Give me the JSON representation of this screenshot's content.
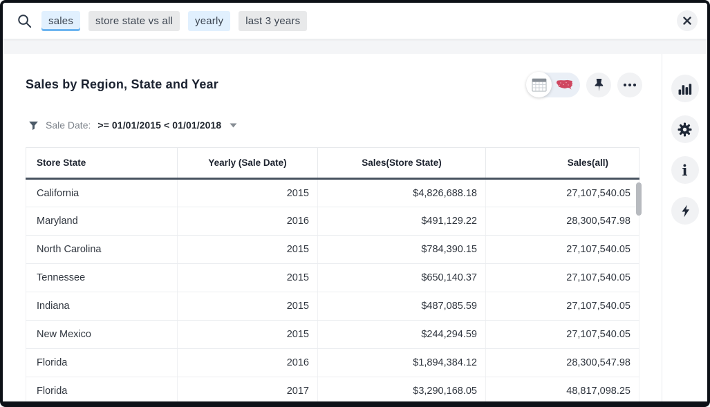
{
  "search": {
    "tokens": [
      {
        "label": "sales",
        "style": "blue-underlined"
      },
      {
        "label": "store state vs all",
        "style": "gray"
      },
      {
        "label": "yearly",
        "style": "blue"
      },
      {
        "label": "last 3 years",
        "style": "gray"
      }
    ]
  },
  "title_bar": {
    "title": "Sales by Region, State and Year",
    "view_toggle": {
      "options": [
        "table-view",
        "map-view"
      ],
      "selected": "table-view"
    }
  },
  "filter_bar": {
    "label": "Sale Date:",
    "value": ">= 01/01/2015 < 01/01/2018"
  },
  "table": {
    "columns": [
      "Store State",
      "Yearly (Sale Date)",
      "Sales(Store State)",
      "Sales(all)"
    ],
    "rows": [
      [
        "California",
        "2015",
        "$4,826,688.18",
        "27,107,540.05"
      ],
      [
        "Maryland",
        "2016",
        "$491,129.22",
        "28,300,547.98"
      ],
      [
        "North Carolina",
        "2015",
        "$784,390.15",
        "27,107,540.05"
      ],
      [
        "Tennessee",
        "2015",
        "$650,140.37",
        "27,107,540.05"
      ],
      [
        "Indiana",
        "2015",
        "$487,085.59",
        "27,107,540.05"
      ],
      [
        "New Mexico",
        "2015",
        "$244,294.59",
        "27,107,540.05"
      ],
      [
        "Florida",
        "2016",
        "$1,894,384.12",
        "28,300,547.98"
      ],
      [
        "Florida",
        "2017",
        "$3,290,168.05",
        "48,817,098.25"
      ]
    ]
  },
  "icons": {
    "search": "magnifier",
    "close": "x-mark",
    "view_table": "grid-table",
    "view_map": "us-map",
    "pin": "pushpin",
    "more": "ellipsis",
    "filter": "funnel",
    "caret": "chevron-down",
    "sidebar": [
      "bar-chart",
      "gear",
      "info",
      "lightning-bolt"
    ]
  },
  "colors": {
    "token_blue_bg": "#e1f0fe",
    "token_gray_bg": "#e8e9ea",
    "token_underline": "#6eb5f0",
    "map_icon_red": "#cf4760",
    "header_underline": "#47525f",
    "text_dark": "#1d232f",
    "strip_bg": "#f4f5f7"
  }
}
